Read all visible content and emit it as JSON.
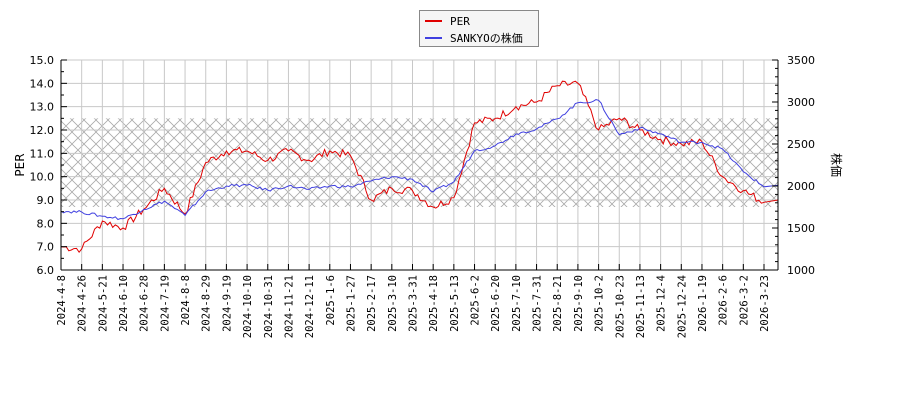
{
  "chart_data": {
    "type": "line",
    "title": "",
    "legend": {
      "position": "top-center",
      "entries": [
        {
          "label": "PER",
          "color": "#e00000"
        },
        {
          "label": "SANKYOの株価",
          "color": "#4040e0"
        }
      ]
    },
    "xlabel": "",
    "ylabel_left": "PER",
    "ylabel_right": "株価",
    "ylim_left": [
      6.0,
      15.0
    ],
    "ylim_right": [
      1000,
      3500
    ],
    "yticks_left": [
      "6.0",
      "7.0",
      "8.0",
      "9.0",
      "10.0",
      "11.0",
      "12.0",
      "13.0",
      "14.0",
      "15.0"
    ],
    "yticks_right": [
      "1000",
      "1500",
      "2000",
      "2500",
      "3000",
      "3500"
    ],
    "grid": true,
    "band": {
      "description": "hatched range band on PER axis",
      "from": 8.7,
      "to": 12.5
    },
    "x": [
      "2024-4-8",
      "2024-4-26",
      "2024-5-21",
      "2024-6-10",
      "2024-6-28",
      "2024-7-19",
      "2024-8-8",
      "2024-8-29",
      "2024-9-19",
      "2024-10-10",
      "2024-10-31",
      "2024-11-21",
      "2024-12-11",
      "2025-1-6",
      "2025-1-27",
      "2025-2-17",
      "2025-3-10",
      "2025-3-31",
      "2025-4-18",
      "2025-5-13",
      "2025-6-2",
      "2025-6-20",
      "2025-7-10",
      "2025-7-31",
      "2025-8-21",
      "2025-9-10",
      "2025-10-2",
      "2025-10-23",
      "2025-11-13",
      "2025-12-4",
      "2025-12-24",
      "2026-1-19",
      "2026-2-6",
      "2026-3-2",
      "2026-3-23"
    ],
    "series": [
      {
        "name": "PER",
        "axis": "left",
        "color": "#e00000",
        "values": [
          7.0,
          6.9,
          8.1,
          7.8,
          8.6,
          9.5,
          8.4,
          10.6,
          11.1,
          11.1,
          10.7,
          11.1,
          10.7,
          11.1,
          10.9,
          9.0,
          9.5,
          9.4,
          8.7,
          9.1,
          12.3,
          12.5,
          13.0,
          13.2,
          13.9,
          14.0,
          12.0,
          12.5,
          12.0,
          11.6,
          11.4,
          11.5,
          10.0,
          9.4,
          8.9
        ],
        "notes": "sharp dip to ~7.1 just before 2024-8-8; jump from ~8.9 to ~12.0 at 2025-5-13; peak ~14.2 near 2025-8-21; drop from ~14.0 to ~12.0 just after 2025-9-10; ends ~8.9"
      },
      {
        "name": "SANKYOの株価",
        "axis": "right",
        "color": "#4040e0",
        "values": [
          1700,
          1690,
          1640,
          1610,
          1720,
          1820,
          1650,
          1930,
          2000,
          2010,
          1950,
          2000,
          1960,
          2000,
          1990,
          2060,
          2110,
          2080,
          1930,
          2050,
          2420,
          2480,
          2620,
          2680,
          2800,
          2990,
          3020,
          2610,
          2690,
          2620,
          2520,
          2520,
          2440,
          2170,
          1990
        ],
        "notes": "dip to ~1650 near 2024-8-8; rises to ~3030 peak around 2025-9-10; drops to ~2600 after; ends near ~1950"
      }
    ]
  }
}
